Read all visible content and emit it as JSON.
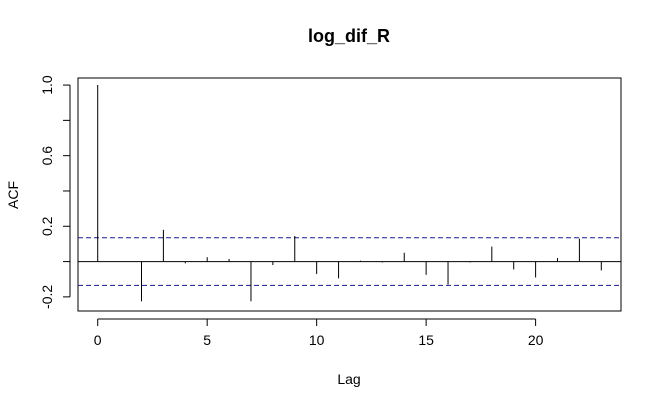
{
  "chart_data": {
    "type": "bar",
    "subtype": "acf",
    "title": "log_dif_R",
    "xlabel": "Lag",
    "ylabel": "ACF",
    "x": [
      0,
      1,
      2,
      3,
      4,
      5,
      6,
      7,
      8,
      9,
      10,
      11,
      12,
      13,
      14,
      15,
      16,
      17,
      18,
      19,
      20,
      21,
      22,
      23
    ],
    "values": [
      1.0,
      0.0,
      -0.225,
      0.18,
      -0.01,
      0.025,
      0.015,
      -0.225,
      -0.02,
      0.145,
      -0.07,
      -0.095,
      0.005,
      -0.005,
      0.05,
      -0.075,
      -0.13,
      -0.005,
      0.085,
      -0.045,
      -0.09,
      0.02,
      0.13,
      -0.05
    ],
    "confidence_bound": 0.135,
    "xlim": [
      -0.9,
      23.9
    ],
    "ylim": [
      -0.28,
      1.04
    ],
    "xticks": [
      0,
      5,
      10,
      15,
      20
    ],
    "xtick_labels": [
      "0",
      "5",
      "10",
      "15",
      "20"
    ],
    "yticks": [
      -0.2,
      0.2,
      0.6,
      1.0
    ],
    "ytick_labels": [
      "-0.2",
      "0.2",
      "0.6",
      "1.0"
    ],
    "zero_line": true,
    "grid": false,
    "colors": {
      "bars": "#000000",
      "confidence": "#1a1a8c",
      "axes": "#000000"
    }
  }
}
